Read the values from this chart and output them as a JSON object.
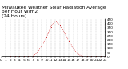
{
  "title": "Milwaukee Weather Solar Radiation Average\nper Hour W/m2\n(24 Hours)",
  "hours": [
    0,
    1,
    2,
    3,
    4,
    5,
    6,
    7,
    8,
    9,
    10,
    11,
    12,
    13,
    14,
    15,
    16,
    17,
    18,
    19,
    20,
    21,
    22,
    23
  ],
  "values": [
    0,
    0,
    0,
    0,
    0,
    0,
    1,
    8,
    50,
    130,
    230,
    360,
    430,
    380,
    290,
    190,
    95,
    35,
    5,
    1,
    0,
    0,
    0,
    0
  ],
  "line_color": "#cc0000",
  "bg_color": "#ffffff",
  "ylim": [
    0,
    450
  ],
  "xlim": [
    0,
    23
  ],
  "title_fontsize": 4.2,
  "tick_fontsize": 3.2,
  "ytick_fontsize": 3.0
}
